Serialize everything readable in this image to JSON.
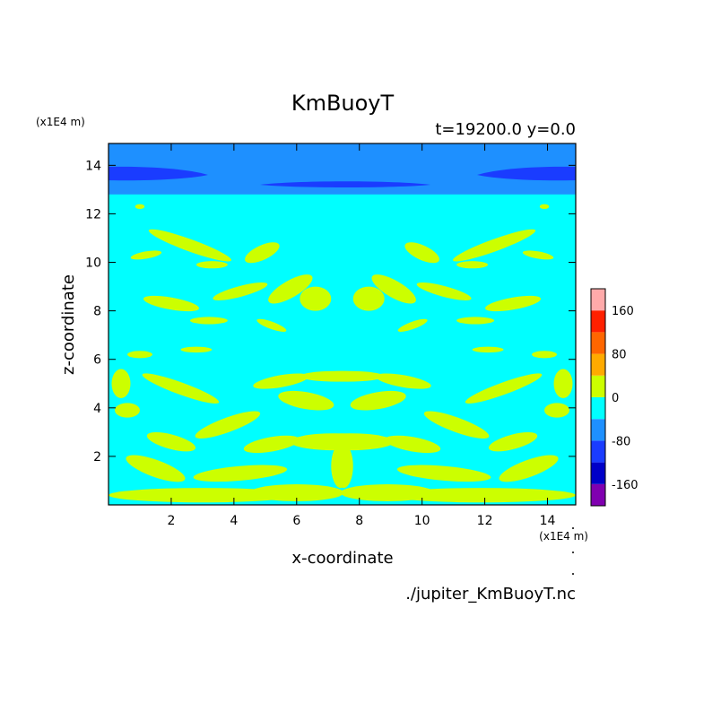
{
  "chart_data": {
    "type": "heatmap",
    "title": "KmBuoyT",
    "subtitle": "t=19200.0 y=0.0",
    "xlabel": "x-coordinate",
    "ylabel": "z-coordinate",
    "x_unit": "(x1E4 m)",
    "y_unit": "(x1E4 m)",
    "xlim": [
      0,
      14.9
    ],
    "ylim": [
      0,
      14.9
    ],
    "x_ticks": [
      2,
      4,
      6,
      8,
      10,
      12,
      14
    ],
    "y_ticks": [
      2,
      4,
      6,
      8,
      10,
      12,
      14
    ],
    "x_tick_labels": [
      "2",
      "4",
      "6",
      "8",
      "10",
      "12",
      "14"
    ],
    "y_tick_labels": [
      "2",
      "4",
      "6",
      "8",
      "10",
      "12",
      "14"
    ],
    "footer": "./jupiter_KmBuoyT.nc",
    "colorbar": {
      "levels": [
        -200,
        -160,
        -120,
        -80,
        -40,
        0,
        40,
        80,
        120,
        160,
        200
      ],
      "colors": [
        "#8000b0",
        "#0000c8",
        "#1a3cff",
        "#1e90ff",
        "#00ffff",
        "#ccff00",
        "#ffaa00",
        "#ff6600",
        "#ff2000",
        "#ffaaaa"
      ],
      "tick_values": [
        -160,
        -80,
        0,
        80,
        160
      ],
      "tick_labels": [
        "-160",
        "-80",
        "0",
        "80",
        "160"
      ]
    },
    "regions": {
      "background": "#00ffff",
      "upper_layer": {
        "z_range": [
          12.8,
          14.9
        ],
        "color": "#1e90ff"
      },
      "deep_bands": {
        "color": "#1a3cff",
        "note": "thin lenses near z≈13.4 at left, center and right"
      },
      "positive_blobs": {
        "color": "#ccff00",
        "note": "scattered patches in z 0–12.5, mirror-symmetric about x≈7.5"
      }
    }
  }
}
